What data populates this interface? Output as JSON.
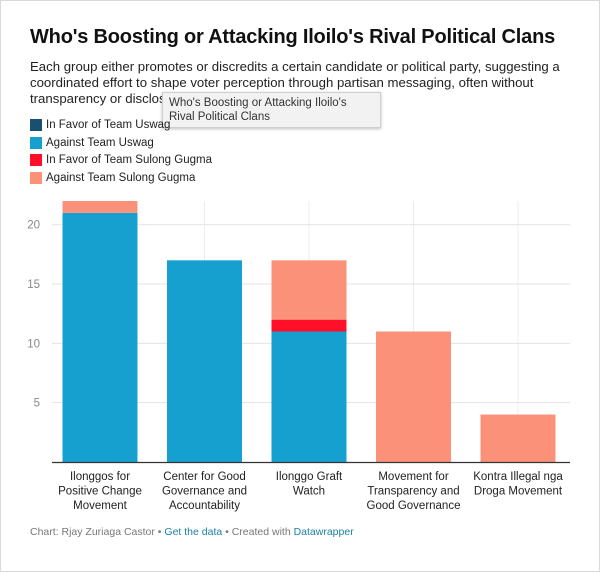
{
  "title": "Who's Boosting or Attacking Iloilo's Rival Political Clans",
  "subtitle": "Each group either promotes or discredits a certain candidate or political party, suggesting a coordinated effort to shape voter perception through partisan messaging, often without transparency or disclos",
  "tooltip": "Who's Boosting or Attacking Iloilo's Rival Political Clans",
  "legend": [
    {
      "label": "In Favor of Team Uswag",
      "color": "#1a4f72"
    },
    {
      "label": "Against Team Uswag",
      "color": "#16a0d0"
    },
    {
      "label": "In Favor of Team Sulong Gugma",
      "color": "#ff1028"
    },
    {
      "label": "Against Team Sulong Gugma",
      "color": "#fc917a"
    }
  ],
  "footer": {
    "credit": "Chart: Rjay Zuriaga Castor",
    "sep1": " • ",
    "get_data": "Get the data",
    "sep2": " • Created with ",
    "tool": "Datawrapper"
  },
  "chart_data": {
    "type": "bar",
    "stacked": true,
    "categories": [
      [
        "Ilonggos for",
        "Positive Change",
        "Movement"
      ],
      [
        "Center for Good",
        "Governance and",
        "Accountability"
      ],
      [
        "Ilonggo Graft",
        "Watch"
      ],
      [
        "Movement for",
        "Transparency and",
        "Good Governance"
      ],
      [
        "Kontra Illegal nga",
        "Droga Movement"
      ]
    ],
    "series": [
      {
        "name": "In Favor of Team Uswag",
        "color": "#1a4f72",
        "values": [
          0,
          0,
          0,
          0,
          0
        ]
      },
      {
        "name": "Against Team Uswag",
        "color": "#16a0d0",
        "values": [
          21,
          17,
          11,
          0,
          0
        ]
      },
      {
        "name": "In Favor of Team Sulong Gugma",
        "color": "#ff1028",
        "values": [
          0,
          0,
          1,
          0,
          0
        ]
      },
      {
        "name": "Against Team Sulong Gugma",
        "color": "#fc917a",
        "values": [
          1,
          0,
          5,
          11,
          4
        ]
      }
    ],
    "ylim": [
      0,
      22
    ],
    "yticks": [
      5,
      10,
      15,
      20
    ],
    "grid": true,
    "legend_position": "top-left"
  }
}
